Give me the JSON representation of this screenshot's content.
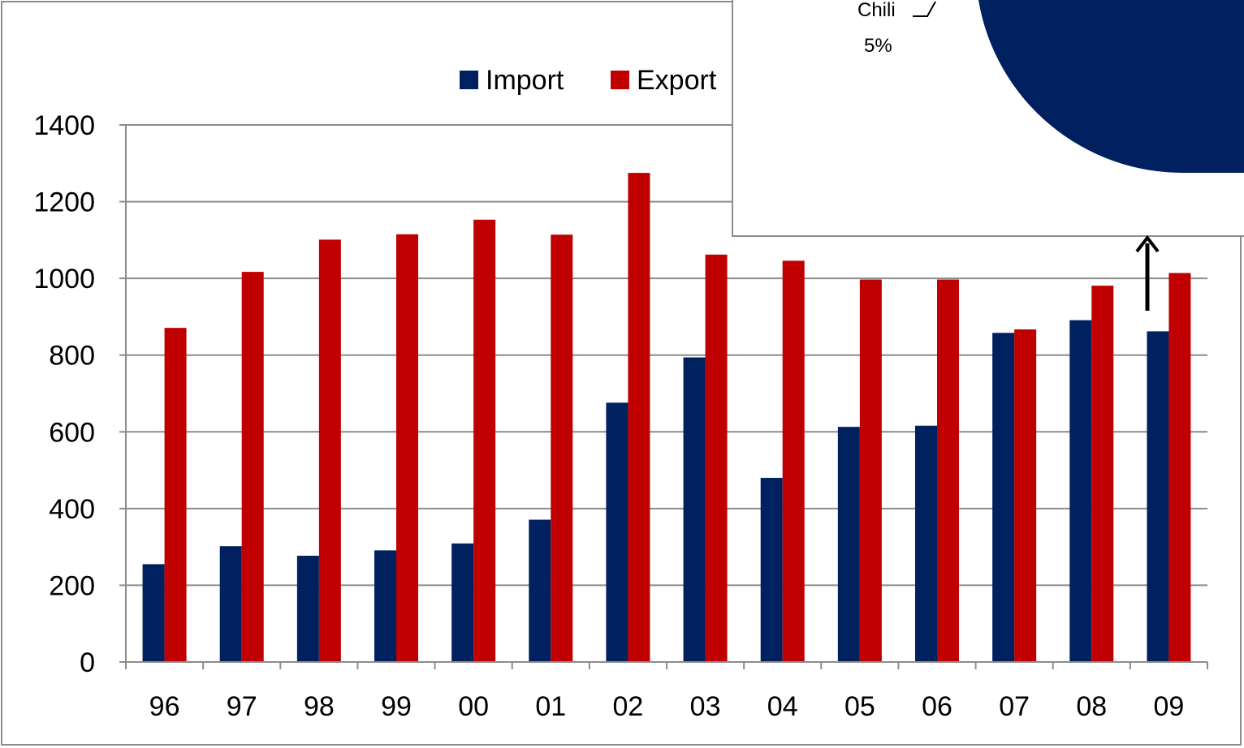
{
  "chart_data": [
    {
      "type": "bar",
      "categories": [
        "96",
        "97",
        "98",
        "99",
        "00",
        "01",
        "02",
        "03",
        "04",
        "05",
        "06",
        "07",
        "08",
        "09"
      ],
      "series": [
        {
          "name": "Import",
          "color": "#002060",
          "values": [
            255,
            302,
            277,
            291,
            309,
            371,
            676,
            794,
            480,
            613,
            616,
            858,
            891,
            862
          ]
        },
        {
          "name": "Export",
          "color": "#c00000",
          "values": [
            871,
            1017,
            1101,
            1115,
            1153,
            1114,
            1275,
            1062,
            1046,
            997,
            997,
            867,
            981,
            1014
          ]
        }
      ],
      "ylim": [
        0,
        1400
      ],
      "yticks": [
        0,
        200,
        400,
        600,
        800,
        1000,
        1200,
        1400
      ],
      "grid": true,
      "legend": "top-center",
      "title": "",
      "xlabel": "",
      "ylabel": ""
    },
    {
      "type": "pie",
      "partial": true,
      "slices": [
        {
          "label": "Chili",
          "value_label": "5%",
          "value": 5
        }
      ],
      "color": "#002060"
    }
  ]
}
